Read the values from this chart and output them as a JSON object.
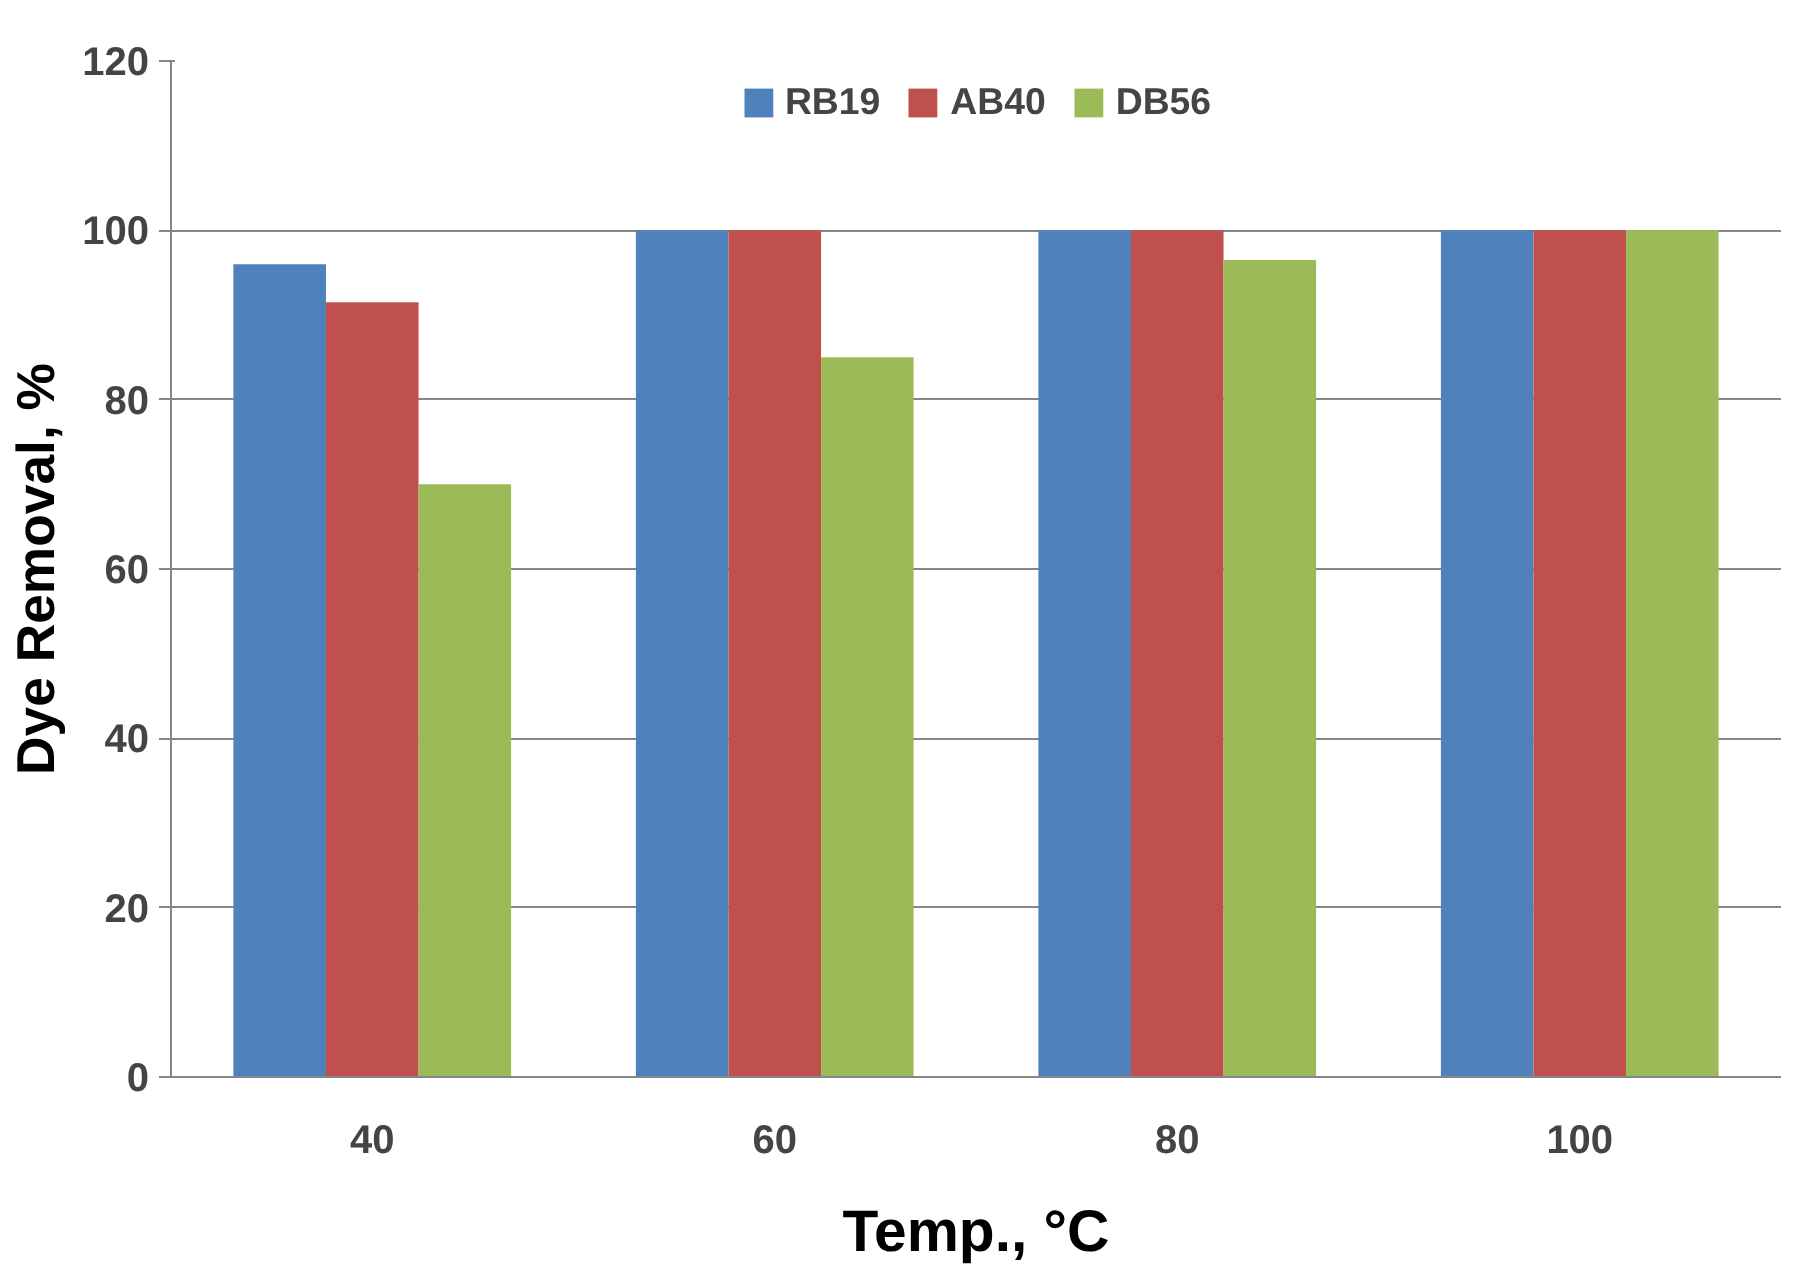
{
  "chart_data": {
    "type": "bar",
    "xlabel": "Temp., °C",
    "ylabel": "Dye Removal, %",
    "categories": [
      "40",
      "60",
      "80",
      "100"
    ],
    "series": [
      {
        "name": "RB19",
        "color": "#4f81bd",
        "values": [
          96,
          100,
          100,
          100
        ]
      },
      {
        "name": "AB40",
        "color": "#c0504d",
        "values": [
          91.5,
          100,
          100,
          100
        ]
      },
      {
        "name": "DB56",
        "color": "#9bbb59",
        "values": [
          70,
          85,
          96.5,
          100
        ]
      }
    ],
    "ylim": [
      0,
      120
    ],
    "yticks": [
      0,
      20,
      40,
      60,
      80,
      100,
      120
    ],
    "grid": "y",
    "legend": "top"
  }
}
